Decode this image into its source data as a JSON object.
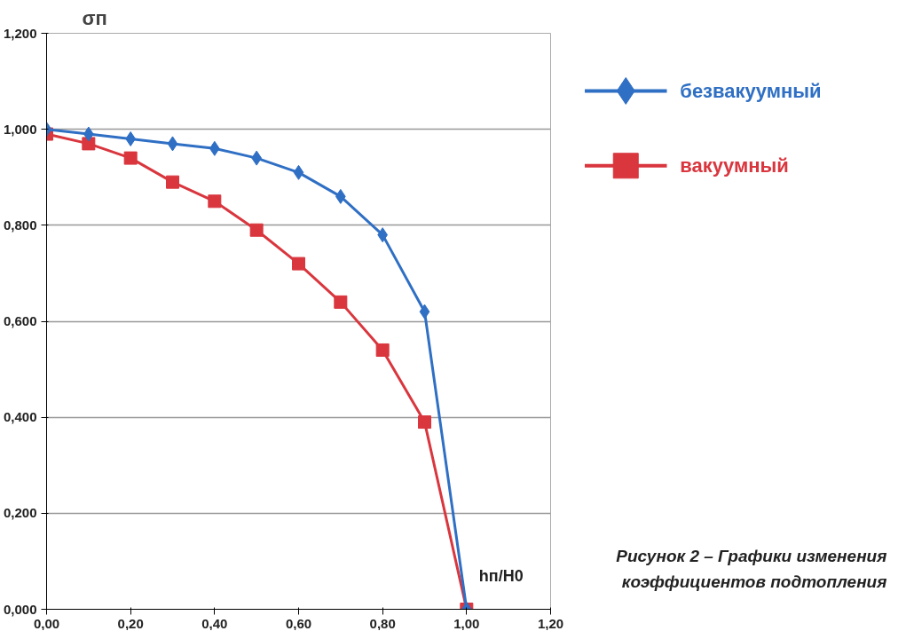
{
  "chart_data": {
    "type": "line",
    "xlabel": "hп/H0",
    "ylabel": "σп",
    "x": [
      0,
      0.1,
      0.2,
      0.3,
      0.4,
      0.5,
      0.6,
      0.7,
      0.8,
      0.9,
      1.0
    ],
    "series": [
      {
        "name": "безвакуумный",
        "color": "#2f6fc4",
        "marker": "diamond",
        "values": [
          1.0,
          0.99,
          0.98,
          0.97,
          0.96,
          0.94,
          0.91,
          0.86,
          0.78,
          0.62,
          0.0
        ]
      },
      {
        "name": "вакуумный",
        "color": "#d9363e",
        "marker": "square",
        "values": [
          0.99,
          0.97,
          0.94,
          0.89,
          0.85,
          0.79,
          0.72,
          0.64,
          0.54,
          0.39,
          0.0
        ]
      }
    ],
    "xlim": [
      0,
      1.2
    ],
    "xticks": [
      {
        "value": 0,
        "label": "0,00"
      },
      {
        "value": 0.2,
        "label": "0,20"
      },
      {
        "value": 0.4,
        "label": "0,40"
      },
      {
        "value": 0.6,
        "label": "0,60"
      },
      {
        "value": 0.8,
        "label": "0,80"
      },
      {
        "value": 1.0,
        "label": "1,00"
      },
      {
        "value": 1.2,
        "label": "1,20"
      }
    ],
    "ylim": [
      0,
      1.2
    ],
    "yticks": [
      {
        "value": 0,
        "label": "0,000"
      },
      {
        "value": 0.2,
        "label": "0,200"
      },
      {
        "value": 0.4,
        "label": "0,400"
      },
      {
        "value": 0.6,
        "label": "0,600"
      },
      {
        "value": 0.8,
        "label": "0,800"
      },
      {
        "value": 1.0,
        "label": "1,000"
      },
      {
        "value": 1.2,
        "label": "1,200"
      }
    ],
    "grid": "y",
    "legend": "top right",
    "line_style": "solid",
    "annotations": [
      "Рисунок 2 – Графики изменения коэффициентов подтопления"
    ]
  }
}
